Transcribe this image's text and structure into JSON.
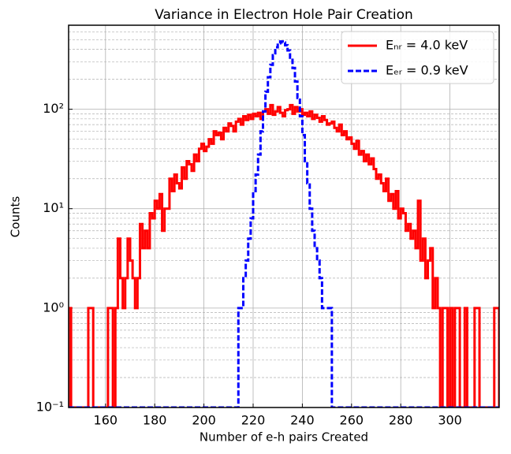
{
  "chart_data": {
    "type": "histogram",
    "title": "Variance in Electron Hole Pair Creation",
    "xlabel": "Number of e-h pairs Created",
    "ylabel": "Counts",
    "bins": [
      145,
      146,
      147,
      148,
      149,
      150,
      151,
      152,
      153,
      154,
      155,
      156,
      157,
      158,
      159,
      160,
      161,
      162,
      163,
      164,
      165,
      166,
      167,
      168,
      169,
      170,
      171,
      172,
      173,
      174,
      175,
      176,
      177,
      178,
      179,
      180,
      181,
      182,
      183,
      184,
      185,
      186,
      187,
      188,
      189,
      190,
      191,
      192,
      193,
      194,
      195,
      196,
      197,
      198,
      199,
      200,
      201,
      202,
      203,
      204,
      205,
      206,
      207,
      208,
      209,
      210,
      211,
      212,
      213,
      214,
      215,
      216,
      217,
      218,
      219,
      220,
      221,
      222,
      223,
      224,
      225,
      226,
      227,
      228,
      229,
      230,
      231,
      232,
      233,
      234,
      235,
      236,
      237,
      238,
      239,
      240,
      241,
      242,
      243,
      244,
      245,
      246,
      247,
      248,
      249,
      250,
      251,
      252,
      253,
      254,
      255,
      256,
      257,
      258,
      259,
      260,
      261,
      262,
      263,
      264,
      265,
      266,
      267,
      268,
      269,
      270,
      271,
      272,
      273,
      274,
      275,
      276,
      277,
      278,
      279,
      280,
      281,
      282,
      283,
      284,
      285,
      286,
      287,
      288,
      289,
      290,
      291,
      292,
      293,
      294,
      295,
      296,
      297,
      298,
      299,
      300,
      301,
      302,
      303,
      304,
      305,
      306,
      307,
      308,
      309,
      310,
      311,
      312,
      313,
      314,
      315,
      316,
      317,
      318,
      319,
      320
    ],
    "series": [
      {
        "name": "Eₙᵣ = 4.0 keV",
        "color": "#ff0000",
        "dash": "solid",
        "values": [
          1,
          0,
          0,
          0,
          0,
          0,
          0,
          0,
          1,
          1,
          0,
          0,
          0,
          0,
          0,
          0,
          1,
          1,
          0,
          1,
          5,
          2,
          1,
          2,
          5,
          3,
          2,
          1,
          2,
          7,
          4,
          6,
          4,
          9,
          8,
          12,
          10,
          14,
          6,
          10,
          10,
          20,
          15,
          22,
          18,
          16,
          26,
          20,
          30,
          28,
          24,
          35,
          30,
          40,
          45,
          38,
          42,
          50,
          45,
          60,
          55,
          58,
          50,
          65,
          60,
          72,
          68,
          60,
          75,
          80,
          70,
          85,
          78,
          88,
          80,
          90,
          85,
          92,
          80,
          95,
          100,
          90,
          110,
          88,
          95,
          105,
          92,
          85,
          98,
          100,
          110,
          90,
          105,
          95,
          100,
          88,
          92,
          85,
          95,
          80,
          88,
          82,
          75,
          85,
          78,
          70,
          72,
          75,
          65,
          60,
          70,
          55,
          60,
          50,
          52,
          45,
          40,
          48,
          35,
          38,
          30,
          35,
          28,
          32,
          25,
          20,
          22,
          18,
          15,
          20,
          12,
          14,
          10,
          15,
          8,
          10,
          9,
          6,
          7,
          5,
          6,
          4,
          12,
          3,
          5,
          2,
          3,
          4,
          1,
          2,
          1,
          0,
          1,
          1,
          0,
          1,
          0,
          1,
          1,
          0,
          0,
          1,
          0,
          0,
          0,
          1,
          1,
          0,
          0,
          0,
          0,
          0,
          0,
          1,
          1
        ]
      },
      {
        "name": "Eₑᵣ = 0.9 keV",
        "color": "#0000ff",
        "dash": "dashed",
        "values": [
          0,
          0,
          0,
          0,
          0,
          0,
          0,
          0,
          0,
          0,
          0,
          0,
          0,
          0,
          0,
          0,
          0,
          0,
          0,
          0,
          0,
          0,
          0,
          0,
          0,
          0,
          0,
          0,
          0,
          0,
          0,
          0,
          0,
          0,
          0,
          0,
          0,
          0,
          0,
          0,
          0,
          0,
          0,
          0,
          0,
          0,
          0,
          0,
          0,
          0,
          0,
          0,
          0,
          0,
          0,
          0,
          0,
          0,
          0,
          0,
          0,
          0,
          0,
          0,
          0,
          0,
          0,
          0,
          0,
          1,
          1,
          2,
          3,
          5,
          8,
          15,
          22,
          35,
          60,
          95,
          150,
          210,
          280,
          350,
          420,
          460,
          480,
          470,
          440,
          390,
          330,
          260,
          190,
          130,
          85,
          55,
          30,
          18,
          10,
          6,
          4,
          3,
          2,
          1,
          1,
          1,
          1,
          0,
          0,
          0,
          0,
          0,
          0,
          0,
          0,
          0,
          0,
          0,
          0,
          0,
          0,
          0,
          0,
          0,
          0,
          0,
          0,
          0,
          0,
          0,
          0,
          0,
          0,
          0,
          0,
          0,
          0,
          0,
          0,
          0,
          0,
          0,
          0,
          0,
          0,
          0,
          0,
          0,
          0,
          0,
          0,
          0,
          0,
          0,
          0,
          0,
          0,
          0,
          0,
          0,
          0,
          0,
          0,
          0,
          0,
          0,
          0,
          0,
          0,
          0,
          0,
          0,
          0,
          0,
          0
        ]
      }
    ],
    "xlim": [
      145,
      320
    ],
    "xticks": [
      160,
      180,
      200,
      220,
      240,
      260,
      280,
      300
    ],
    "ylim": [
      0.1,
      700
    ],
    "yticks": [
      {
        "value": 0.1,
        "label": "10⁻¹"
      },
      {
        "value": 1,
        "label": "10⁰"
      },
      {
        "value": 10,
        "label": "10¹"
      },
      {
        "value": 100,
        "label": "10²"
      }
    ],
    "log_y": true,
    "grid": true,
    "legend": "upper right"
  }
}
